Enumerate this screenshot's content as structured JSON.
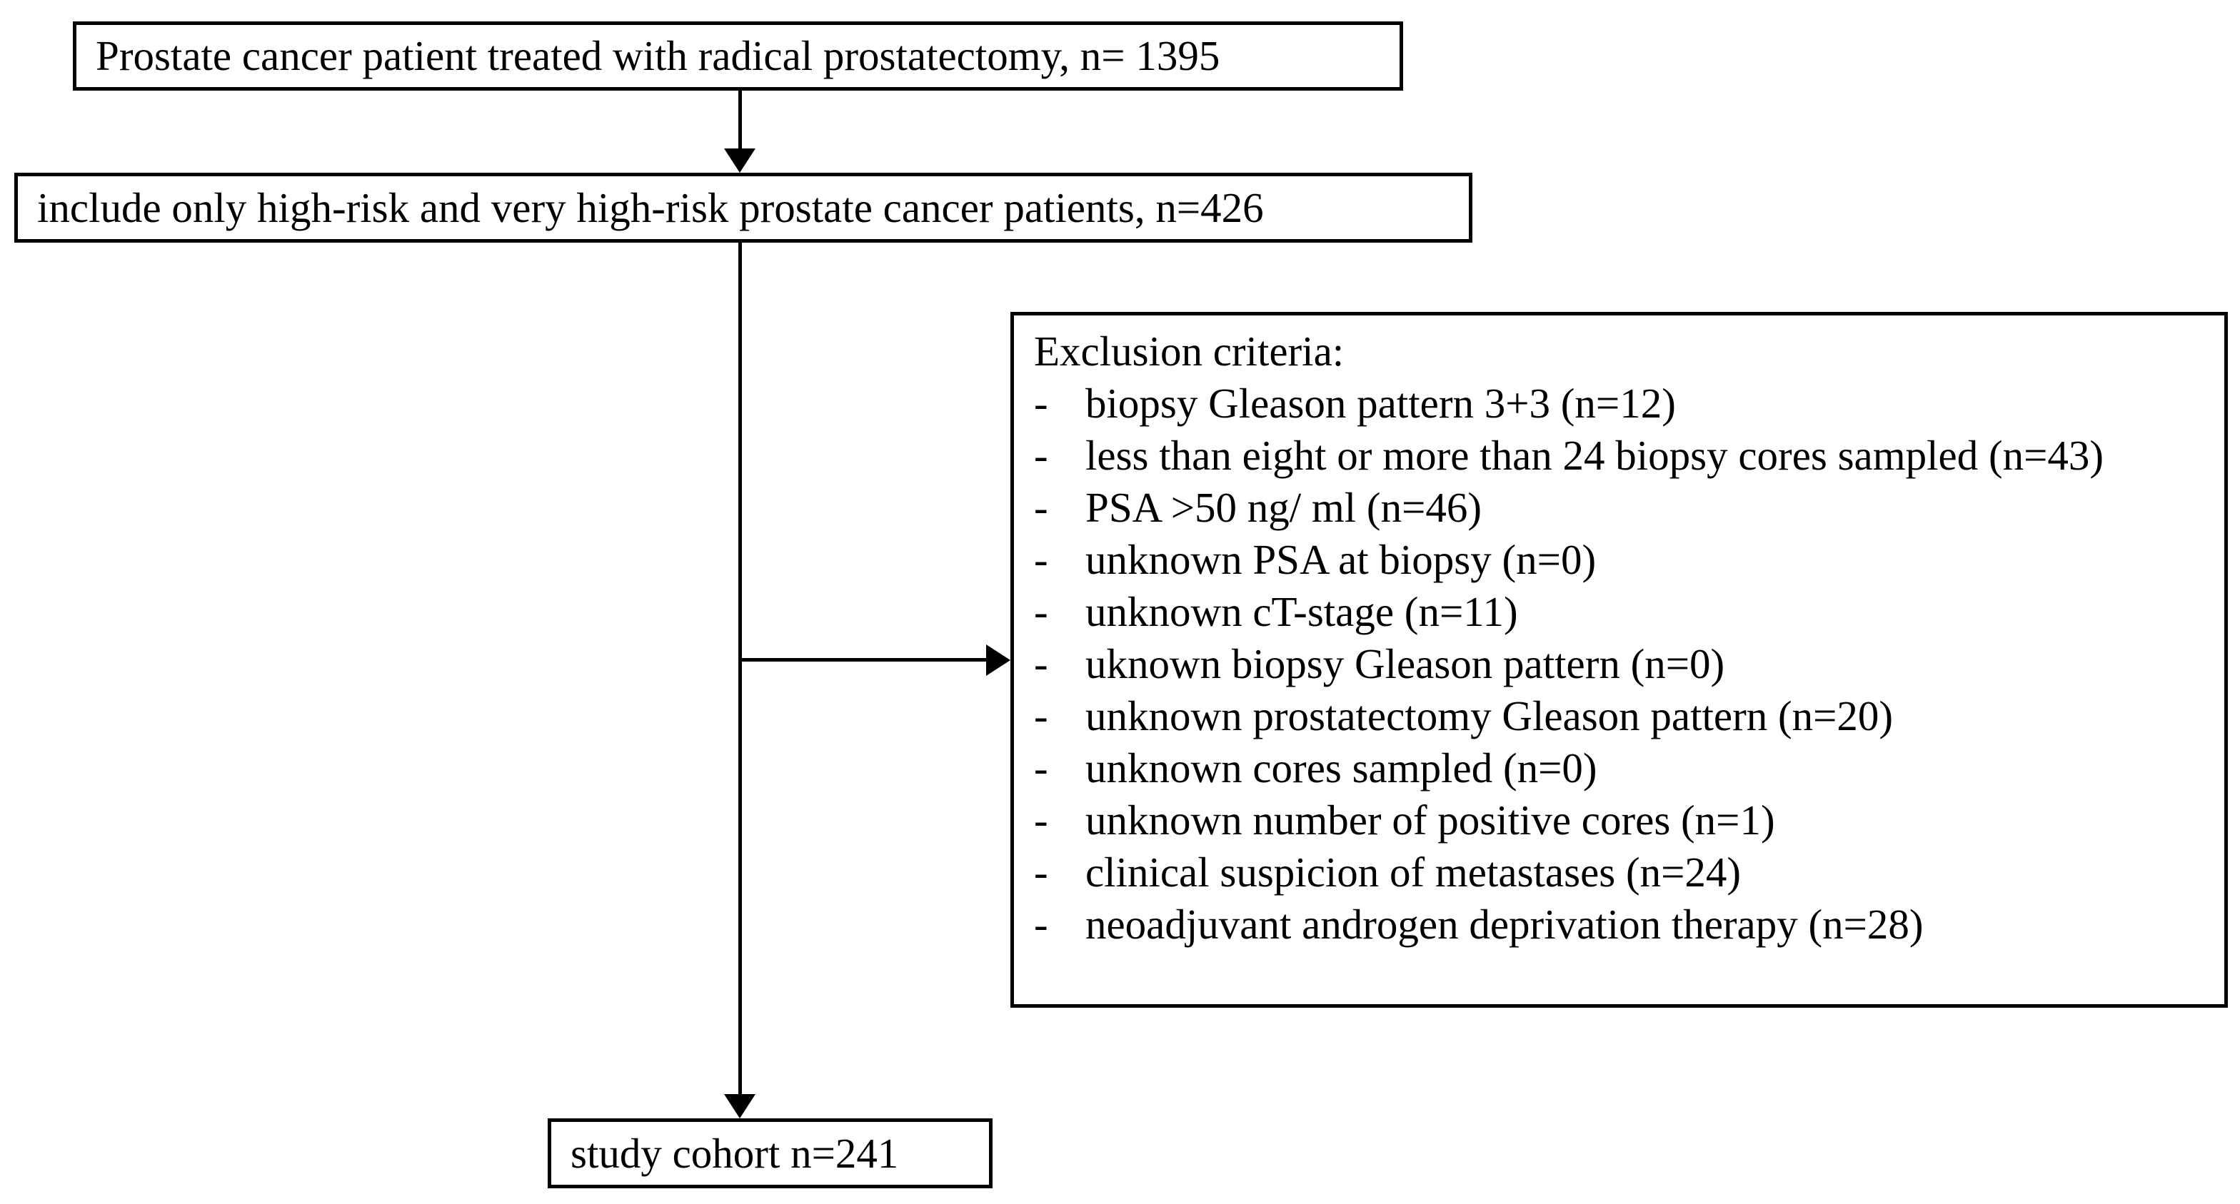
{
  "flowchart": {
    "boxes": {
      "initial": {
        "text": "Prostate cancer patient treated with radical prostatectomy, n= 1395"
      },
      "filter": {
        "text": "include only high-risk and very high-risk prostate cancer patients, n=426"
      },
      "study": {
        "text": "study cohort n=241"
      }
    },
    "exclusion": {
      "title": "Exclusion criteria:",
      "bullet": "-",
      "items": [
        "biopsy Gleason pattern 3+3 (n=12)",
        "less than eight or more than 24 biopsy cores sampled (n=43)",
        "PSA >50 ng/ ml (n=46)",
        "unknown PSA at biopsy (n=0)",
        "unknown cT-stage (n=11)",
        "uknown biopsy Gleason pattern (n=0)",
        "unknown prostatectomy Gleason pattern (n=20)",
        "unknown cores sampled (n=0)",
        "unknown number of positive cores (n=1)",
        "clinical suspicion of metastases (n=24)",
        "neoadjuvant androgen deprivation therapy (n=28)"
      ]
    },
    "colors": {
      "line": "#000000",
      "text": "#000000",
      "background": "#ffffff"
    }
  }
}
